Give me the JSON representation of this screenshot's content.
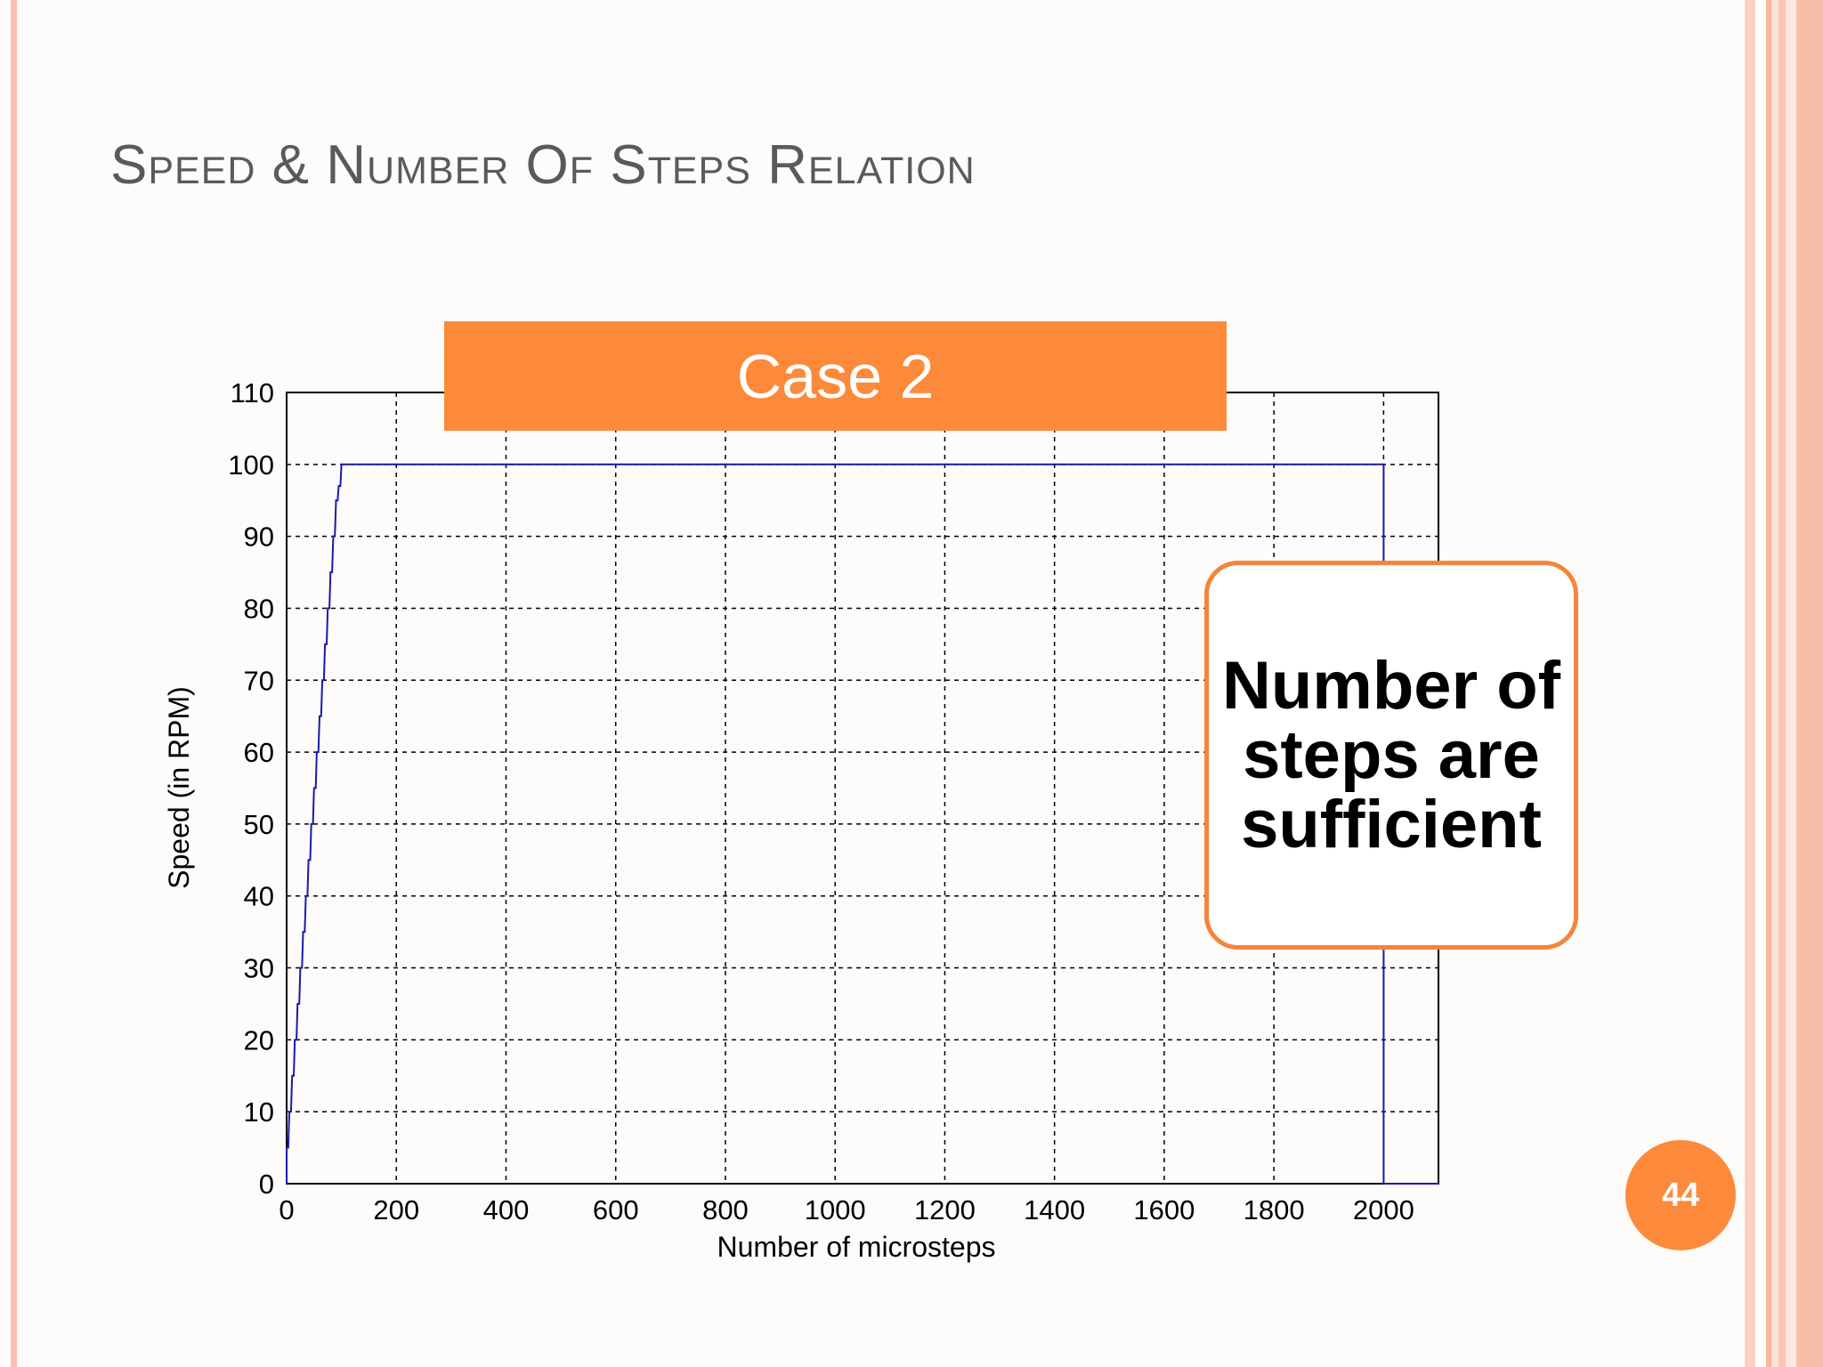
{
  "slide": {
    "title": "Speed & Number Of Steps Relation",
    "page_number": "44"
  },
  "banner": {
    "label": "Case 2"
  },
  "callout": {
    "text": "Number of steps are sufficient"
  },
  "colors": {
    "accent": "#fd8a3a",
    "line": "#1a1aa8",
    "title_text": "#5a5a5a"
  },
  "chart_data": {
    "type": "line",
    "title": "",
    "xlabel": "Number of microsteps",
    "ylabel": "Speed (in RPM)",
    "xlim": [
      0,
      2100
    ],
    "ylim": [
      0,
      110
    ],
    "xticks": [
      0,
      200,
      400,
      600,
      800,
      1000,
      1200,
      1400,
      1600,
      1800,
      2000
    ],
    "yticks": [
      0,
      10,
      20,
      30,
      40,
      50,
      60,
      70,
      80,
      90,
      100,
      110
    ],
    "grid": true,
    "series": [
      {
        "x": [
          0,
          0,
          3,
          5,
          8,
          10,
          13,
          15,
          18,
          20,
          23,
          25,
          28,
          30,
          33,
          35,
          38,
          40,
          43,
          45,
          48,
          50,
          53,
          55,
          58,
          60,
          63,
          65,
          68,
          70,
          73,
          75,
          78,
          80,
          83,
          85,
          88,
          90,
          93,
          95,
          98,
          100,
          2000,
          2000,
          2100
        ],
        "y": [
          0,
          5,
          5,
          10,
          10,
          15,
          15,
          20,
          20,
          25,
          25,
          30,
          30,
          35,
          35,
          40,
          40,
          45,
          45,
          50,
          50,
          55,
          55,
          60,
          60,
          65,
          65,
          70,
          70,
          75,
          75,
          80,
          80,
          85,
          85,
          90,
          90,
          95,
          95,
          97,
          97,
          100,
          100,
          0,
          0
        ]
      }
    ]
  }
}
